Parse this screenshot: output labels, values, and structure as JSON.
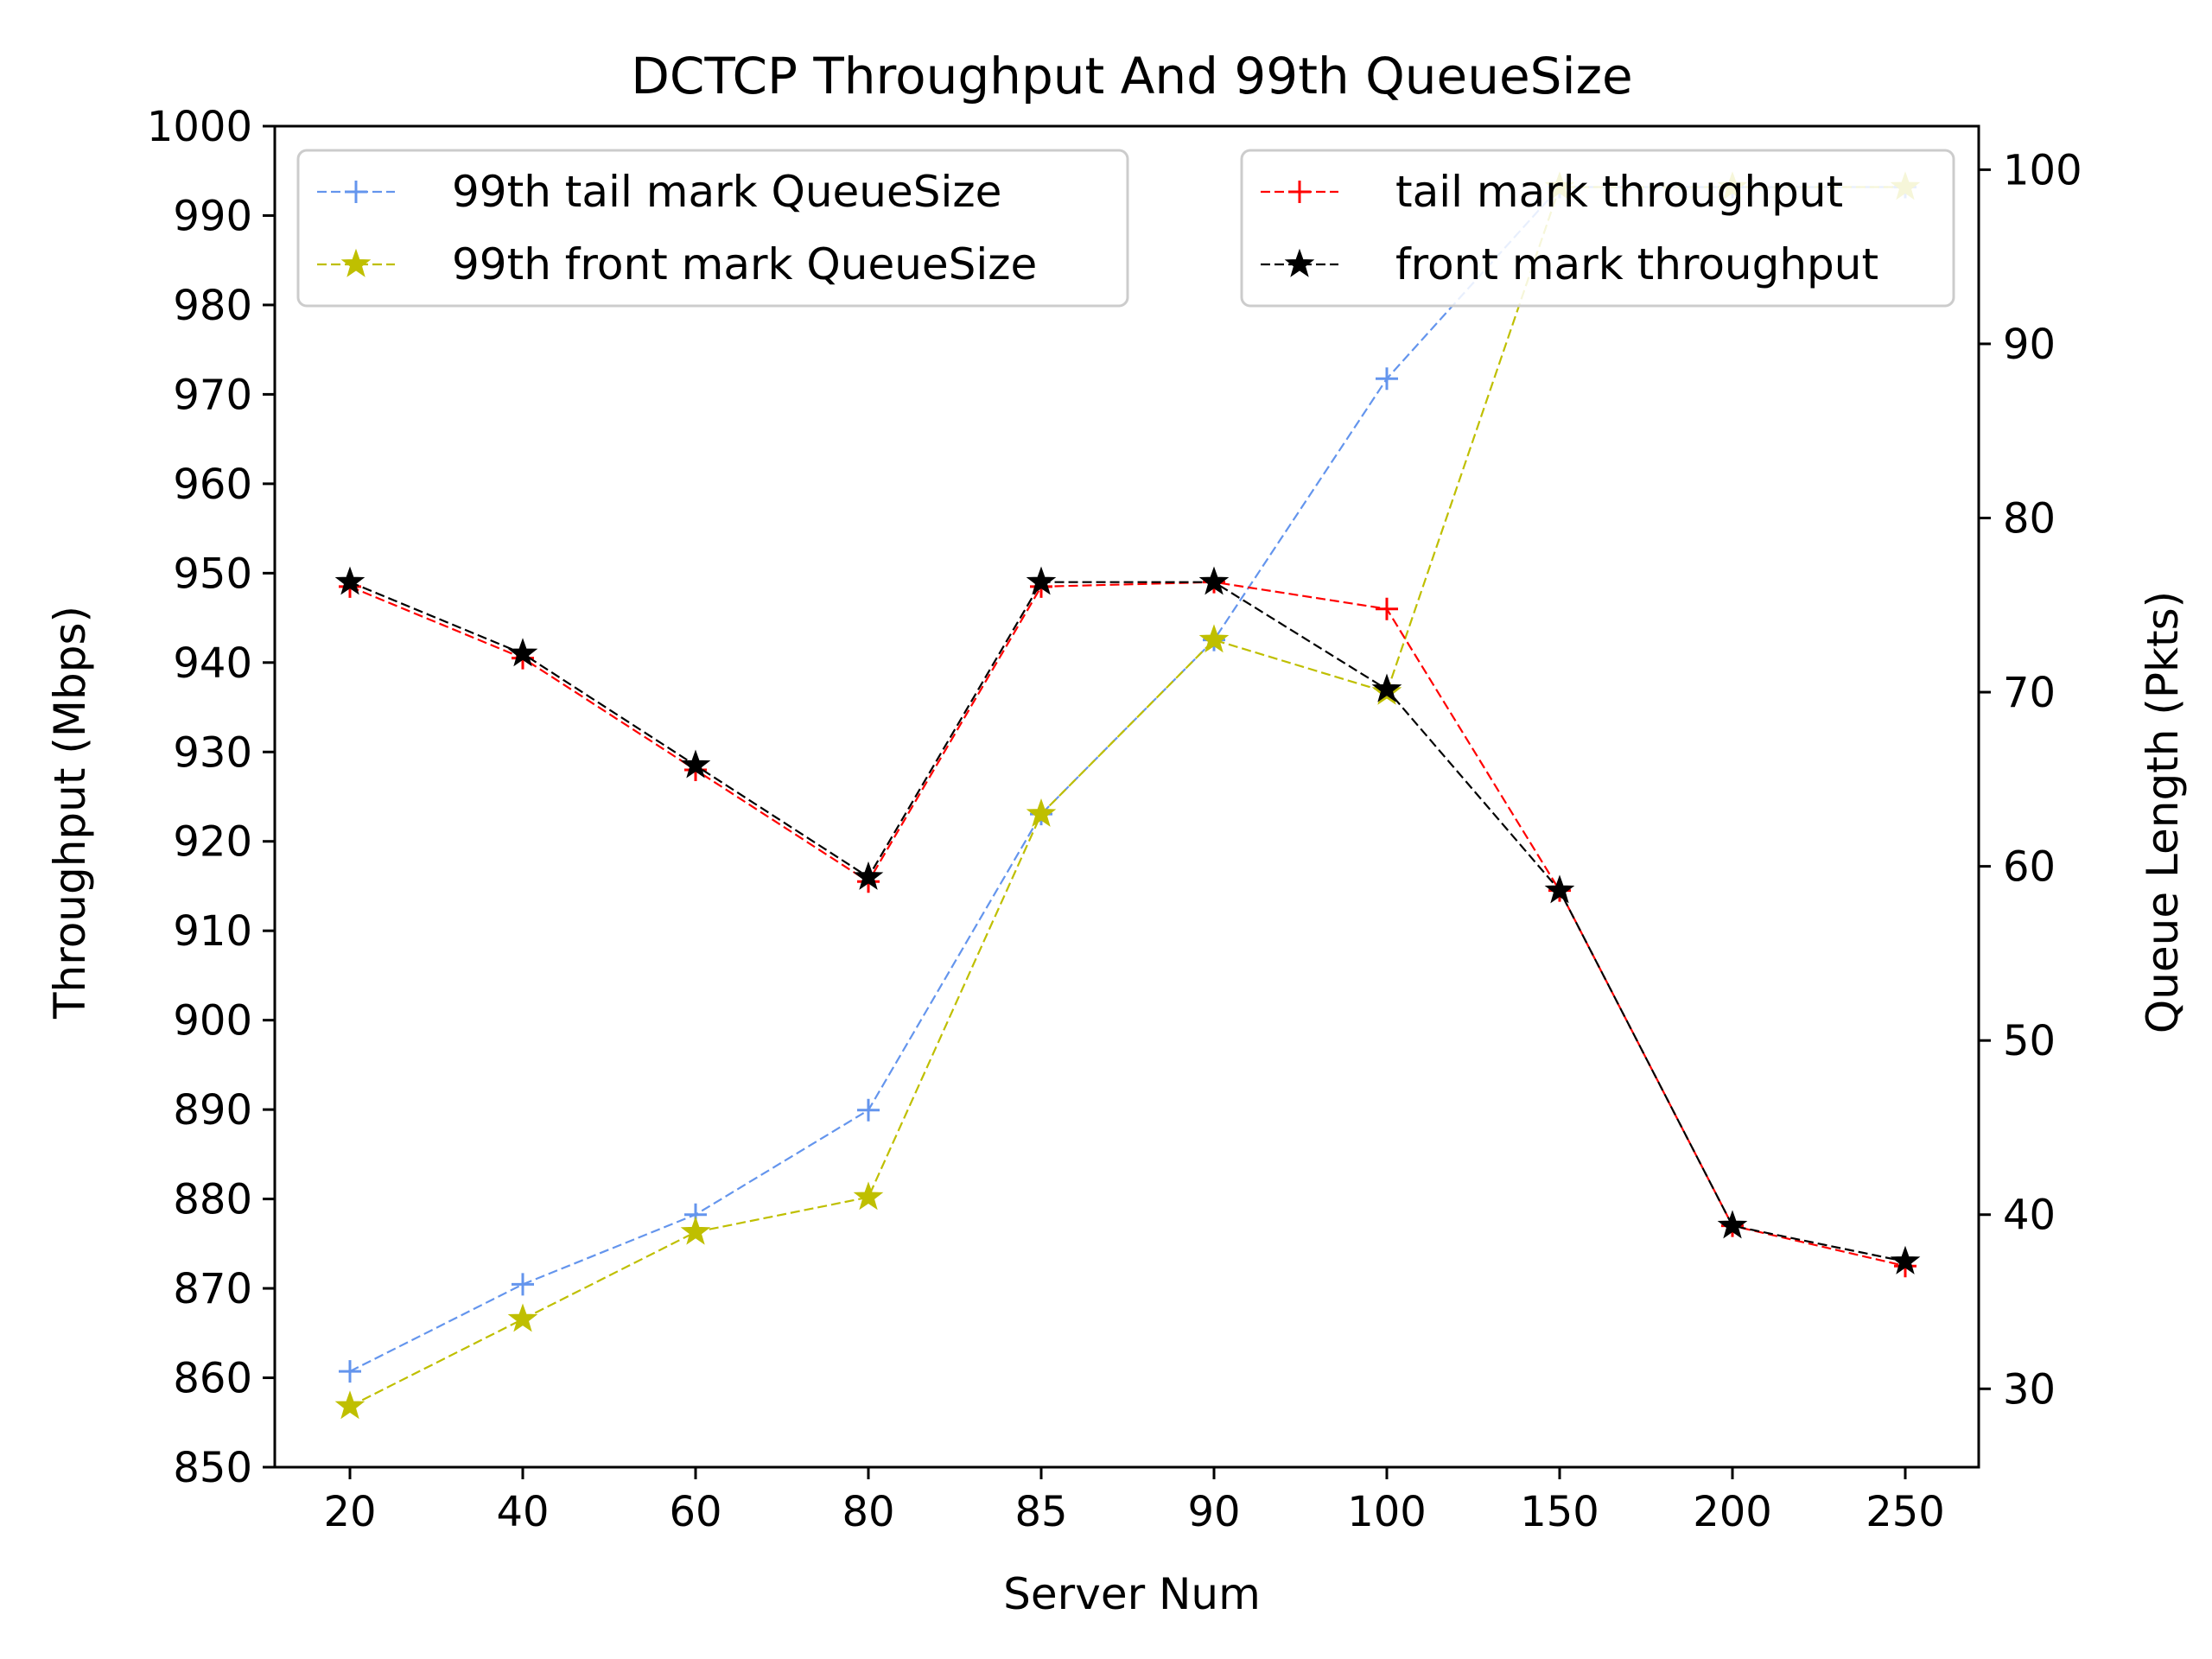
{
  "chart_data": {
    "type": "line",
    "title": "DCTCP Throughput And 99th QueueSize",
    "xlabel": "Server Num",
    "ylabel": "Throughput (Mbps)",
    "y2label": "Queue Length (Pkts)",
    "categories": [
      "20",
      "40",
      "60",
      "80",
      "85",
      "90",
      "100",
      "150",
      "200",
      "250"
    ],
    "ylim": [
      850,
      1000
    ],
    "yticks": [
      850,
      860,
      870,
      880,
      890,
      900,
      910,
      920,
      930,
      940,
      950,
      960,
      970,
      980,
      990,
      1000
    ],
    "y2lim": [
      25.5,
      102.5
    ],
    "y2ticks": [
      30,
      40,
      50,
      60,
      70,
      80,
      90,
      100
    ],
    "grid": false,
    "legends": [
      {
        "placement": "top-left",
        "entries": [
          "99th tail mark QueueSize",
          "99th front mark QueueSize"
        ]
      },
      {
        "placement": "top-right",
        "entries": [
          "tail mark throughput",
          "front mark throughput"
        ]
      }
    ],
    "series": [
      {
        "name": "99th tail mark QueueSize",
        "axis": "right",
        "color": "#6495ed",
        "marker": "plus",
        "values": [
          31,
          36,
          40,
          46,
          63,
          73,
          88,
          99,
          99,
          99
        ]
      },
      {
        "name": "99th front mark QueueSize",
        "axis": "right",
        "color": "#bfbf00",
        "marker": "star",
        "values": [
          29,
          34,
          39,
          41,
          63,
          73,
          70,
          99,
          99,
          99
        ]
      },
      {
        "name": "tail mark throughput",
        "axis": "left",
        "color": "#ff0000",
        "marker": "plus",
        "values": [
          948.5,
          940.5,
          928,
          915.5,
          948.5,
          949,
          946,
          914.5,
          877,
          872.5
        ]
      },
      {
        "name": "front mark throughput",
        "axis": "left",
        "color": "#000000",
        "marker": "star",
        "values": [
          949,
          941,
          928.5,
          916,
          949,
          949,
          937,
          914.5,
          877,
          873
        ]
      }
    ]
  }
}
